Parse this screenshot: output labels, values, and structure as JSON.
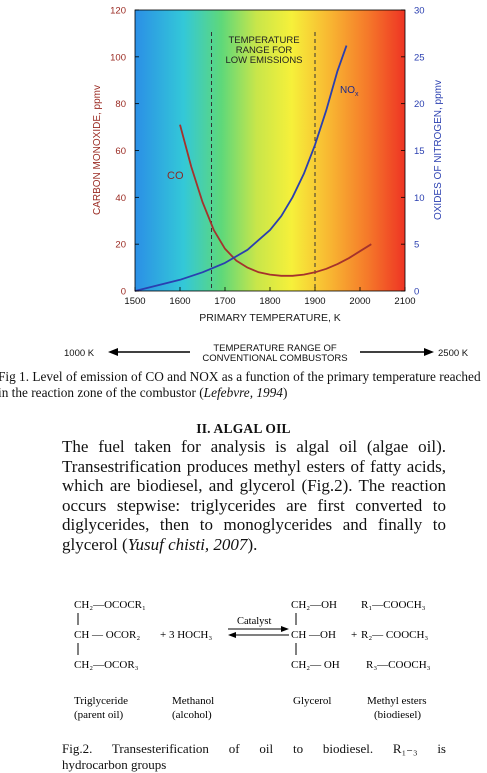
{
  "chart_data": {
    "type": "line",
    "xlabel": "PRIMARY TEMPERATURE, K",
    "ylabel_left": "CARBON MONOXIDE, ppmv",
    "ylabel_right": "OXIDES OF NITROGEN, ppmv",
    "x_ticks": [
      "1500",
      "1600",
      "1700",
      "1800",
      "1900",
      "2000",
      "2100"
    ],
    "y_left_ticks": [
      "0",
      "20",
      "40",
      "60",
      "80",
      "100",
      "120"
    ],
    "y_right_ticks": [
      "0",
      "5",
      "10",
      "15",
      "20",
      "25",
      "30"
    ],
    "xlim": [
      1500,
      2100
    ],
    "ylim_left": [
      0,
      120
    ],
    "ylim_right": [
      0,
      30
    ],
    "background": "temperature color gradient (blue to red)",
    "band_label": [
      "TEMPERATURE",
      "RANGE FOR",
      "LOW EMISSIONS"
    ],
    "band_range": [
      1670,
      1900
    ],
    "series": [
      {
        "name": "CO",
        "axis": "left",
        "color": "#a5322c",
        "x": [
          1600,
          1625,
          1650,
          1675,
          1700,
          1725,
          1750,
          1775,
          1800,
          1825,
          1850,
          1875,
          1900,
          1925,
          1950,
          1975,
          2000,
          2025
        ],
        "y": [
          71,
          53,
          38,
          26,
          18,
          13,
          10,
          8,
          7,
          6.5,
          6.5,
          7,
          8,
          9.5,
          11.5,
          14,
          17,
          20
        ]
      },
      {
        "name": "NOX",
        "axis": "right",
        "color": "#2a3fb0",
        "x": [
          1500,
          1550,
          1600,
          1650,
          1700,
          1750,
          1800,
          1825,
          1850,
          1875,
          1900,
          1925,
          1950,
          1970
        ],
        "y": [
          0,
          0.6,
          1.2,
          2.0,
          3.0,
          4.4,
          6.5,
          8.0,
          10.0,
          12.5,
          15.6,
          19.3,
          23.5,
          26.2
        ]
      }
    ],
    "annotations": {
      "co_label": "CO",
      "nox_label": "NO",
      "nox_sub": "x"
    }
  },
  "arrow": {
    "left": "1000 K",
    "center_line1": "TEMPERATURE RANGE OF",
    "center_line2": "CONVENTIONAL COMBUSTORS",
    "right": "2500 K"
  },
  "caption1": {
    "text": "Fig 1. Level of emission of CO and NOX as a function of the primary temperature reached in the reaction zone of the combustor (",
    "cite": "Lefebvre, 1994",
    "end": ")"
  },
  "section_heading": "II. ALGAL OIL",
  "paragraph": {
    "text": "The fuel taken for analysis is algal oil (algae oil). Transestrification produces methyl esters of fatty acids, which are biodiesel, and glycerol (Fig.2). The reaction occurs stepwise: triglycerides are first converted to diglycerides, then to monoglycerides and finally to glycerol (",
    "cite": "Yusuf chisti, 2007",
    "end": ")."
  },
  "reaction": {
    "tri_1": "CH₂—OCOCR₁",
    "tri_2": "CH — OCOR₂",
    "tri_3": "CH₂—OCOR₃",
    "plus": "+ 3 HOCH₃",
    "catalyst": "Catalyst",
    "gly_1": "CH₂—OH",
    "gly_2": "CH —OH",
    "gly_3": "CH₂— OH",
    "plus2": "+",
    "est_1": "R₁—COOCH₃",
    "est_2": "R₂— COOCH₃",
    "est_3": "R₃—COOCH₃",
    "lbl_tri_1": "Triglyceride",
    "lbl_tri_2": "(parent oil)",
    "lbl_meth_1": "Methanol",
    "lbl_meth_2": "(alcohol)",
    "lbl_gly": "Glycerol",
    "lbl_est_1": "Methyl esters",
    "lbl_est_2": "(biodiesel)"
  },
  "caption2": {
    "line1": "Fig.2.  Transesterification  of  oil  to  biodiesel.  R₁₋₃  is",
    "line2": "hydrocarbon groups"
  }
}
